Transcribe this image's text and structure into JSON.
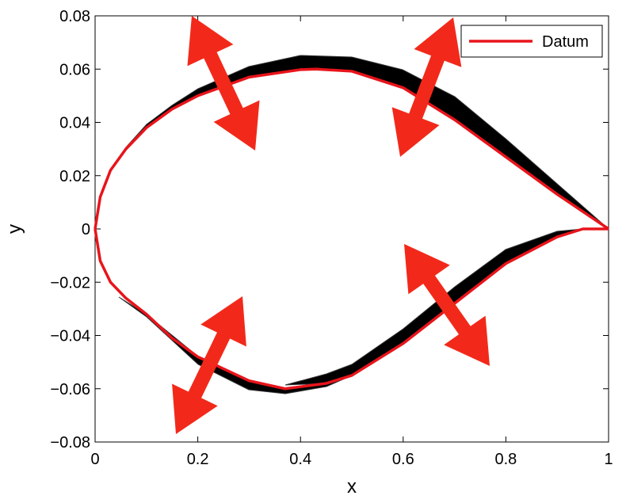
{
  "chart_data": {
    "type": "line",
    "xlabel": "x",
    "ylabel": "y",
    "xlim": [
      0,
      1
    ],
    "ylim": [
      -0.08,
      0.08
    ],
    "xticks": [
      0,
      0.2,
      0.4,
      0.6,
      0.8,
      1
    ],
    "yticks": [
      {
        "value": -0.08,
        "label": "−0.08"
      },
      {
        "value": -0.06,
        "label": "−0.06"
      },
      {
        "value": -0.04,
        "label": "−0.04"
      },
      {
        "value": -0.02,
        "label": "−0.02"
      },
      0,
      0.02,
      0.04,
      0.06,
      0.08
    ],
    "legend": "upper right",
    "series": [
      {
        "name": "Datum",
        "color": "#e8141b",
        "x": [
          0,
          0.01,
          0.03,
          0.06,
          0.1,
          0.15,
          0.2,
          0.3,
          0.4,
          0.43,
          0.5,
          0.6,
          0.7,
          0.8,
          0.9,
          1.0
        ],
        "values": [
          0,
          0.012,
          0.022,
          0.03,
          0.038,
          0.045,
          0.05,
          0.057,
          0.0598,
          0.06,
          0.0592,
          0.053,
          0.041,
          0.027,
          0.013,
          0
        ]
      },
      {
        "color": "#e8141b",
        "x": [
          0,
          0.01,
          0.03,
          0.06,
          0.1,
          0.15,
          0.2,
          0.3,
          0.37,
          0.45,
          0.5,
          0.6,
          0.7,
          0.8,
          0.9,
          0.95,
          1.0
        ],
        "values": [
          0,
          -0.012,
          -0.02,
          -0.026,
          -0.032,
          -0.041,
          -0.048,
          -0.057,
          -0.06,
          -0.058,
          -0.055,
          -0.043,
          -0.028,
          -0.013,
          -0.003,
          0,
          0
        ]
      }
    ]
  }
}
